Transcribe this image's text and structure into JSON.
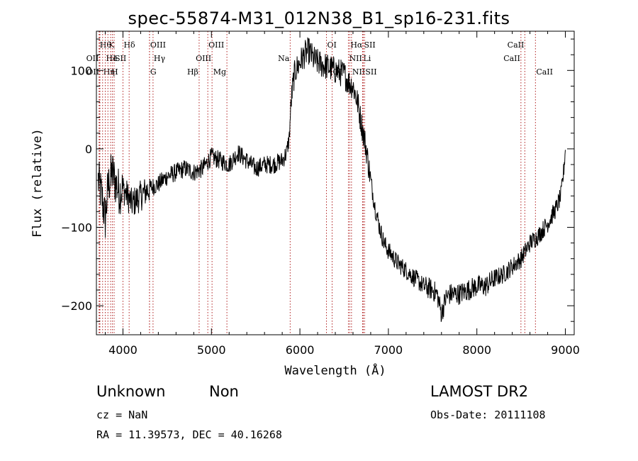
{
  "chart_data": {
    "type": "line",
    "title": "spec-55874-M31_012N38_B1_sp16-231.fits",
    "xlabel": "Wavelength (Å)",
    "ylabel": "Flux (relative)",
    "xlim": [
      3700,
      9100
    ],
    "ylim": [
      -237,
      150
    ],
    "x_ticks": [
      4000,
      5000,
      6000,
      7000,
      8000,
      9000
    ],
    "x_tick_labels": [
      "4000",
      "5000",
      "6000",
      "7000",
      "8000",
      "9000"
    ],
    "y_ticks": [
      -200,
      -100,
      0,
      100
    ],
    "y_tick_labels": [
      "−200",
      "−100",
      "0",
      "100"
    ],
    "grid": false,
    "series": [
      {
        "color": "#000000",
        "x": [
          3720,
          3760,
          3800,
          3830,
          3850,
          3880,
          3920,
          3960,
          4000,
          4050,
          4100,
          4150,
          4200,
          4300,
          4400,
          4500,
          4600,
          4700,
          4800,
          4900,
          5000,
          5100,
          5200,
          5300,
          5400,
          5500,
          5600,
          5700,
          5800,
          5850,
          5880,
          5900,
          5930,
          5950,
          6000,
          6050,
          6100,
          6150,
          6200,
          6300,
          6400,
          6500,
          6550,
          6600,
          6650,
          6700,
          6750,
          6800,
          6850,
          6900,
          6950,
          7000,
          7100,
          7200,
          7300,
          7400,
          7500,
          7550,
          7600,
          7650,
          7700,
          7800,
          7900,
          8000,
          8100,
          8200,
          8300,
          8400,
          8500,
          8600,
          8700,
          8800,
          8850,
          8900,
          8950,
          8980,
          9000
        ],
        "y": [
          -40,
          -60,
          -90,
          -50,
          -40,
          -30,
          -45,
          -55,
          -50,
          -60,
          -70,
          -65,
          -60,
          -50,
          -45,
          -35,
          -30,
          -25,
          -30,
          -25,
          -10,
          -15,
          -20,
          -5,
          -15,
          -25,
          -20,
          -20,
          -15,
          -5,
          15,
          60,
          90,
          100,
          110,
          120,
          125,
          115,
          110,
          105,
          100,
          95,
          85,
          80,
          60,
          30,
          0,
          -40,
          -75,
          -100,
          -120,
          -130,
          -145,
          -155,
          -165,
          -175,
          -180,
          -185,
          -210,
          -190,
          -185,
          -185,
          -180,
          -175,
          -175,
          -165,
          -160,
          -150,
          -140,
          -120,
          -110,
          -95,
          -85,
          -75,
          -60,
          -30,
          0
        ]
      }
    ],
    "lines": [
      {
        "x": 3730,
        "label": "Hθ",
        "row": 1,
        "align": "left"
      },
      {
        "x": 3735,
        "label": "OII",
        "row": 2,
        "align": "right"
      },
      {
        "x": 3740,
        "label": "OII",
        "row": 3,
        "align": "right"
      },
      {
        "x": 3770,
        "label": "Hη",
        "row": 3,
        "align": "left"
      },
      {
        "x": 3800,
        "label": "He",
        "row": 2,
        "align": "left"
      },
      {
        "x": 3830,
        "label": "K",
        "row": 1,
        "align": "left"
      },
      {
        "x": 3860,
        "label": "H",
        "row": 3,
        "align": "left"
      },
      {
        "x": 3880,
        "label": "I",
        "row": 2,
        "align": "left"
      },
      {
        "x": 3900,
        "label": "SII",
        "row": 2,
        "align": "left"
      },
      {
        "x": 4000,
        "label": "Hδ",
        "row": 1,
        "align": "left"
      },
      {
        "x": 4070,
        "label": "",
        "row": 0,
        "align": "left"
      },
      {
        "x": 4300,
        "label": "OIII",
        "row": 1,
        "align": "left"
      },
      {
        "x": 4340,
        "label": "Hγ",
        "row": 2,
        "align": "left"
      },
      {
        "x": 4300,
        "label": "G",
        "row": 3,
        "align": "left"
      },
      {
        "x": 4861,
        "label": "Hβ",
        "row": 3,
        "align": "right"
      },
      {
        "x": 4959,
        "label": "OIII",
        "row": 1,
        "align": "left"
      },
      {
        "x": 5007,
        "label": "OIII",
        "row": 2,
        "align": "right"
      },
      {
        "x": 5175,
        "label": "Mg",
        "row": 3,
        "align": "right"
      },
      {
        "x": 5890,
        "label": "Na",
        "row": 2,
        "align": "right"
      },
      {
        "x": 6300,
        "label": "OI",
        "row": 1,
        "align": "left"
      },
      {
        "x": 6364,
        "label": "OI",
        "row": 3,
        "align": "left"
      },
      {
        "x": 6548,
        "label": "NII",
        "row": 2,
        "align": "left"
      },
      {
        "x": 6563,
        "label": "Hα",
        "row": 1,
        "align": "left"
      },
      {
        "x": 6583,
        "label": "NII",
        "row": 3,
        "align": "left"
      },
      {
        "x": 6708,
        "label": "Li",
        "row": 2,
        "align": "left"
      },
      {
        "x": 6716,
        "label": "SII",
        "row": 1,
        "align": "left"
      },
      {
        "x": 6731,
        "label": "SII",
        "row": 3,
        "align": "left"
      },
      {
        "x": 8498,
        "label": "CaII",
        "row": 2,
        "align": "right"
      },
      {
        "x": 8542,
        "label": "CaII",
        "row": 1,
        "align": "right"
      },
      {
        "x": 8662,
        "label": "CaII",
        "row": 3,
        "align": "left"
      }
    ]
  },
  "info": {
    "classification": "Unknown",
    "subclass": "Non",
    "survey": "LAMOST DR2",
    "cz": "cz = NaN",
    "obs_date": "Obs-Date: 20111108",
    "coords": "RA =  11.39573, DEC =  40.16268"
  }
}
